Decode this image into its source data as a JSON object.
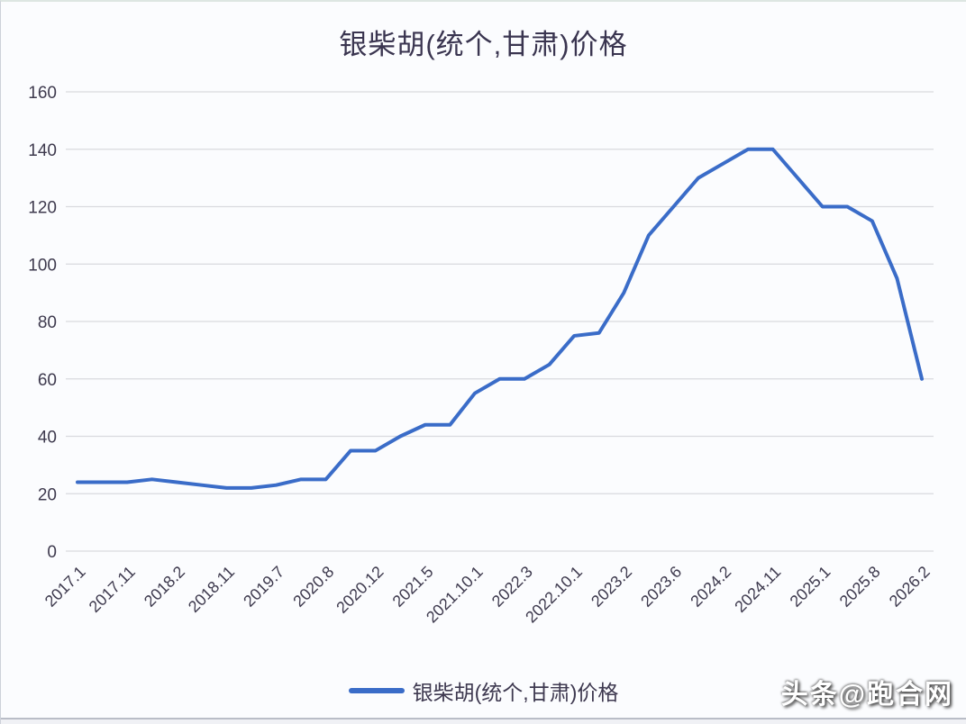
{
  "title": "银柴胡(统个,甘肃)价格",
  "legend": {
    "label": "银柴胡(统个,甘肃)价格"
  },
  "watermark": "头条@跑合网",
  "colors": {
    "line": "#3a6cc8",
    "grid": "#d9dade",
    "axis_text": "#3e3a4e",
    "title_text": "#3a3550",
    "background": "#fbfcfe"
  },
  "chart_data": {
    "type": "line",
    "title": "银柴胡(统个,甘肃)价格",
    "series_name": "银柴胡(统个,甘肃)价格",
    "ylim": [
      0,
      160
    ],
    "yticks": [
      0,
      20,
      40,
      60,
      80,
      100,
      120,
      140,
      160
    ],
    "ytick_labels": [
      "0",
      "20",
      "40",
      "60",
      "80",
      "100",
      "120",
      "140",
      "160"
    ],
    "grid": true,
    "legend_position": "bottom",
    "x_labels": [
      "2017.1",
      "2017.11",
      "2018.2",
      "2018.11",
      "2019.7",
      "2020.8",
      "2020.12",
      "2021.5",
      "2021.10.1",
      "2022.3",
      "2022.10.1",
      "2023.2",
      "2023.6",
      "2024.2",
      "2024.11",
      "2025.1",
      "2025.8",
      "2026.2"
    ],
    "label_every": 2,
    "values": [
      24,
      24,
      24,
      25,
      24,
      23,
      22,
      22,
      23,
      25,
      25,
      35,
      35,
      40,
      44,
      44,
      55,
      60,
      60,
      65,
      75,
      76,
      90,
      110,
      120,
      130,
      135,
      140,
      140,
      130,
      120,
      120,
      115,
      95,
      60
    ]
  }
}
